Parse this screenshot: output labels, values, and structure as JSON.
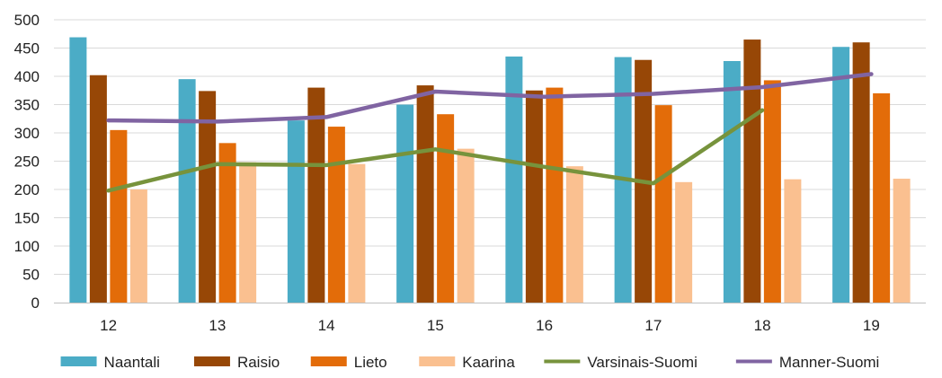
{
  "chart_data": {
    "type": "bar",
    "categories": [
      "12",
      "13",
      "14",
      "15",
      "16",
      "17",
      "18",
      "19"
    ],
    "ylim": [
      0,
      500
    ],
    "yticks": [
      0,
      50,
      100,
      150,
      200,
      250,
      300,
      350,
      400,
      450,
      500
    ],
    "grid": true,
    "legend_position": "bottom",
    "series": [
      {
        "name": "Naantali",
        "kind": "bar",
        "color": "#4bacc6",
        "values": [
          469,
          395,
          322,
          350,
          435,
          434,
          427,
          452
        ]
      },
      {
        "name": "Raisio",
        "kind": "bar",
        "color": "#974706",
        "values": [
          402,
          374,
          380,
          384,
          375,
          429,
          465,
          460
        ]
      },
      {
        "name": "Lieto",
        "kind": "bar",
        "color": "#e36c09",
        "values": [
          305,
          282,
          311,
          333,
          380,
          349,
          393,
          370
        ]
      },
      {
        "name": "Kaarina",
        "kind": "bar",
        "color": "#fac090",
        "values": [
          200,
          248,
          245,
          272,
          241,
          213,
          218,
          219
        ]
      },
      {
        "name": "Varsinais-Suomi",
        "kind": "line",
        "color": "#77933c",
        "values": [
          198,
          245,
          243,
          271,
          240,
          211,
          340,
          null
        ]
      },
      {
        "name": "Manner-Suomi",
        "kind": "line",
        "color": "#8064a2",
        "values": [
          322,
          320,
          328,
          373,
          364,
          369,
          381,
          404
        ]
      }
    ]
  }
}
